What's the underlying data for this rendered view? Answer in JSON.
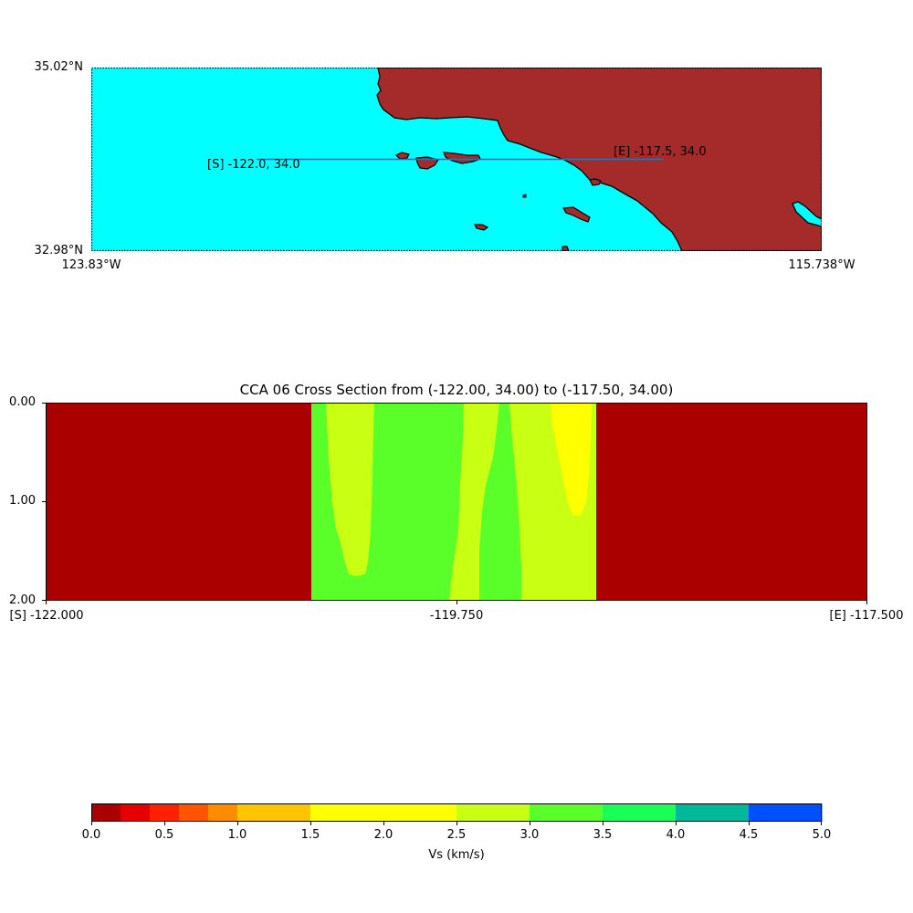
{
  "map": {
    "lat_top": "35.02°N",
    "lat_bottom": "32.98°N",
    "lon_left": "123.83°W",
    "lon_right": "115.738°W",
    "start_label": "[S] -122.0, 34.0",
    "end_label": "[E] -117.5, 34.0",
    "ocean_color": "#00ffff",
    "land_color": "#a52a2a",
    "line_color": "#1f77b4",
    "lon_range": [
      -123.83,
      -115.738
    ],
    "lat_range": [
      32.98,
      35.02
    ],
    "start_point": [
      -122.0,
      34.0
    ],
    "end_point": [
      -117.5,
      34.0
    ]
  },
  "section": {
    "title": "CCA 06 Cross Section from (-122.00, 34.00) to (-117.50, 34.00)",
    "y_ticks": [
      "0.00",
      "1.00",
      "2.00"
    ],
    "x_ticks": [
      "[S] -122.000",
      "-119.750",
      "[E] -117.500"
    ]
  },
  "colorbar": {
    "label": "Vs (km/s)",
    "ticks": [
      "0.0",
      "0.5",
      "1.0",
      "1.5",
      "2.0",
      "2.5",
      "3.0",
      "3.5",
      "4.0",
      "4.5",
      "5.0"
    ]
  },
  "chart_data": [
    {
      "type": "map",
      "x_range": [
        -123.83,
        -115.738
      ],
      "y_range": [
        32.98,
        35.02
      ],
      "line": {
        "from": [
          -122.0,
          34.0
        ],
        "to": [
          -117.5,
          34.0
        ]
      }
    },
    {
      "type": "heatmap",
      "title": "CCA 06 Cross Section from (-122.00, 34.00) to (-117.50, 34.00)",
      "x_range": [
        -122.0,
        -117.5
      ],
      "y_range": [
        0,
        2
      ],
      "y_inverted": true,
      "regions": [
        {
          "x_from": -122.0,
          "x_to": -120.545,
          "vs_bin": [
            0.0,
            0.2
          ]
        },
        {
          "x_from": -120.545,
          "x_to": -119.0,
          "vs_bin": [
            3.0,
            3.5
          ]
        },
        {
          "x_from": -119.0,
          "x_to": -117.5,
          "vs_bin": [
            0.0,
            0.2
          ]
        }
      ]
    },
    {
      "type": "colorbar",
      "range": [
        0,
        5
      ],
      "bounds": [
        0,
        0.2,
        0.4,
        0.6,
        0.8,
        1.0,
        1.5,
        2.5,
        3.0,
        3.5,
        4.0,
        4.5,
        5.0
      ],
      "colors": [
        "#aa0000",
        "#e60000",
        "#ff2000",
        "#ff5400",
        "#ff8c00",
        "#ffc400",
        "#ffff00",
        "#c8ff12",
        "#5aff2a",
        "#1aff55",
        "#00b998",
        "#0050ff"
      ],
      "label": "Vs (km/s)"
    }
  ]
}
